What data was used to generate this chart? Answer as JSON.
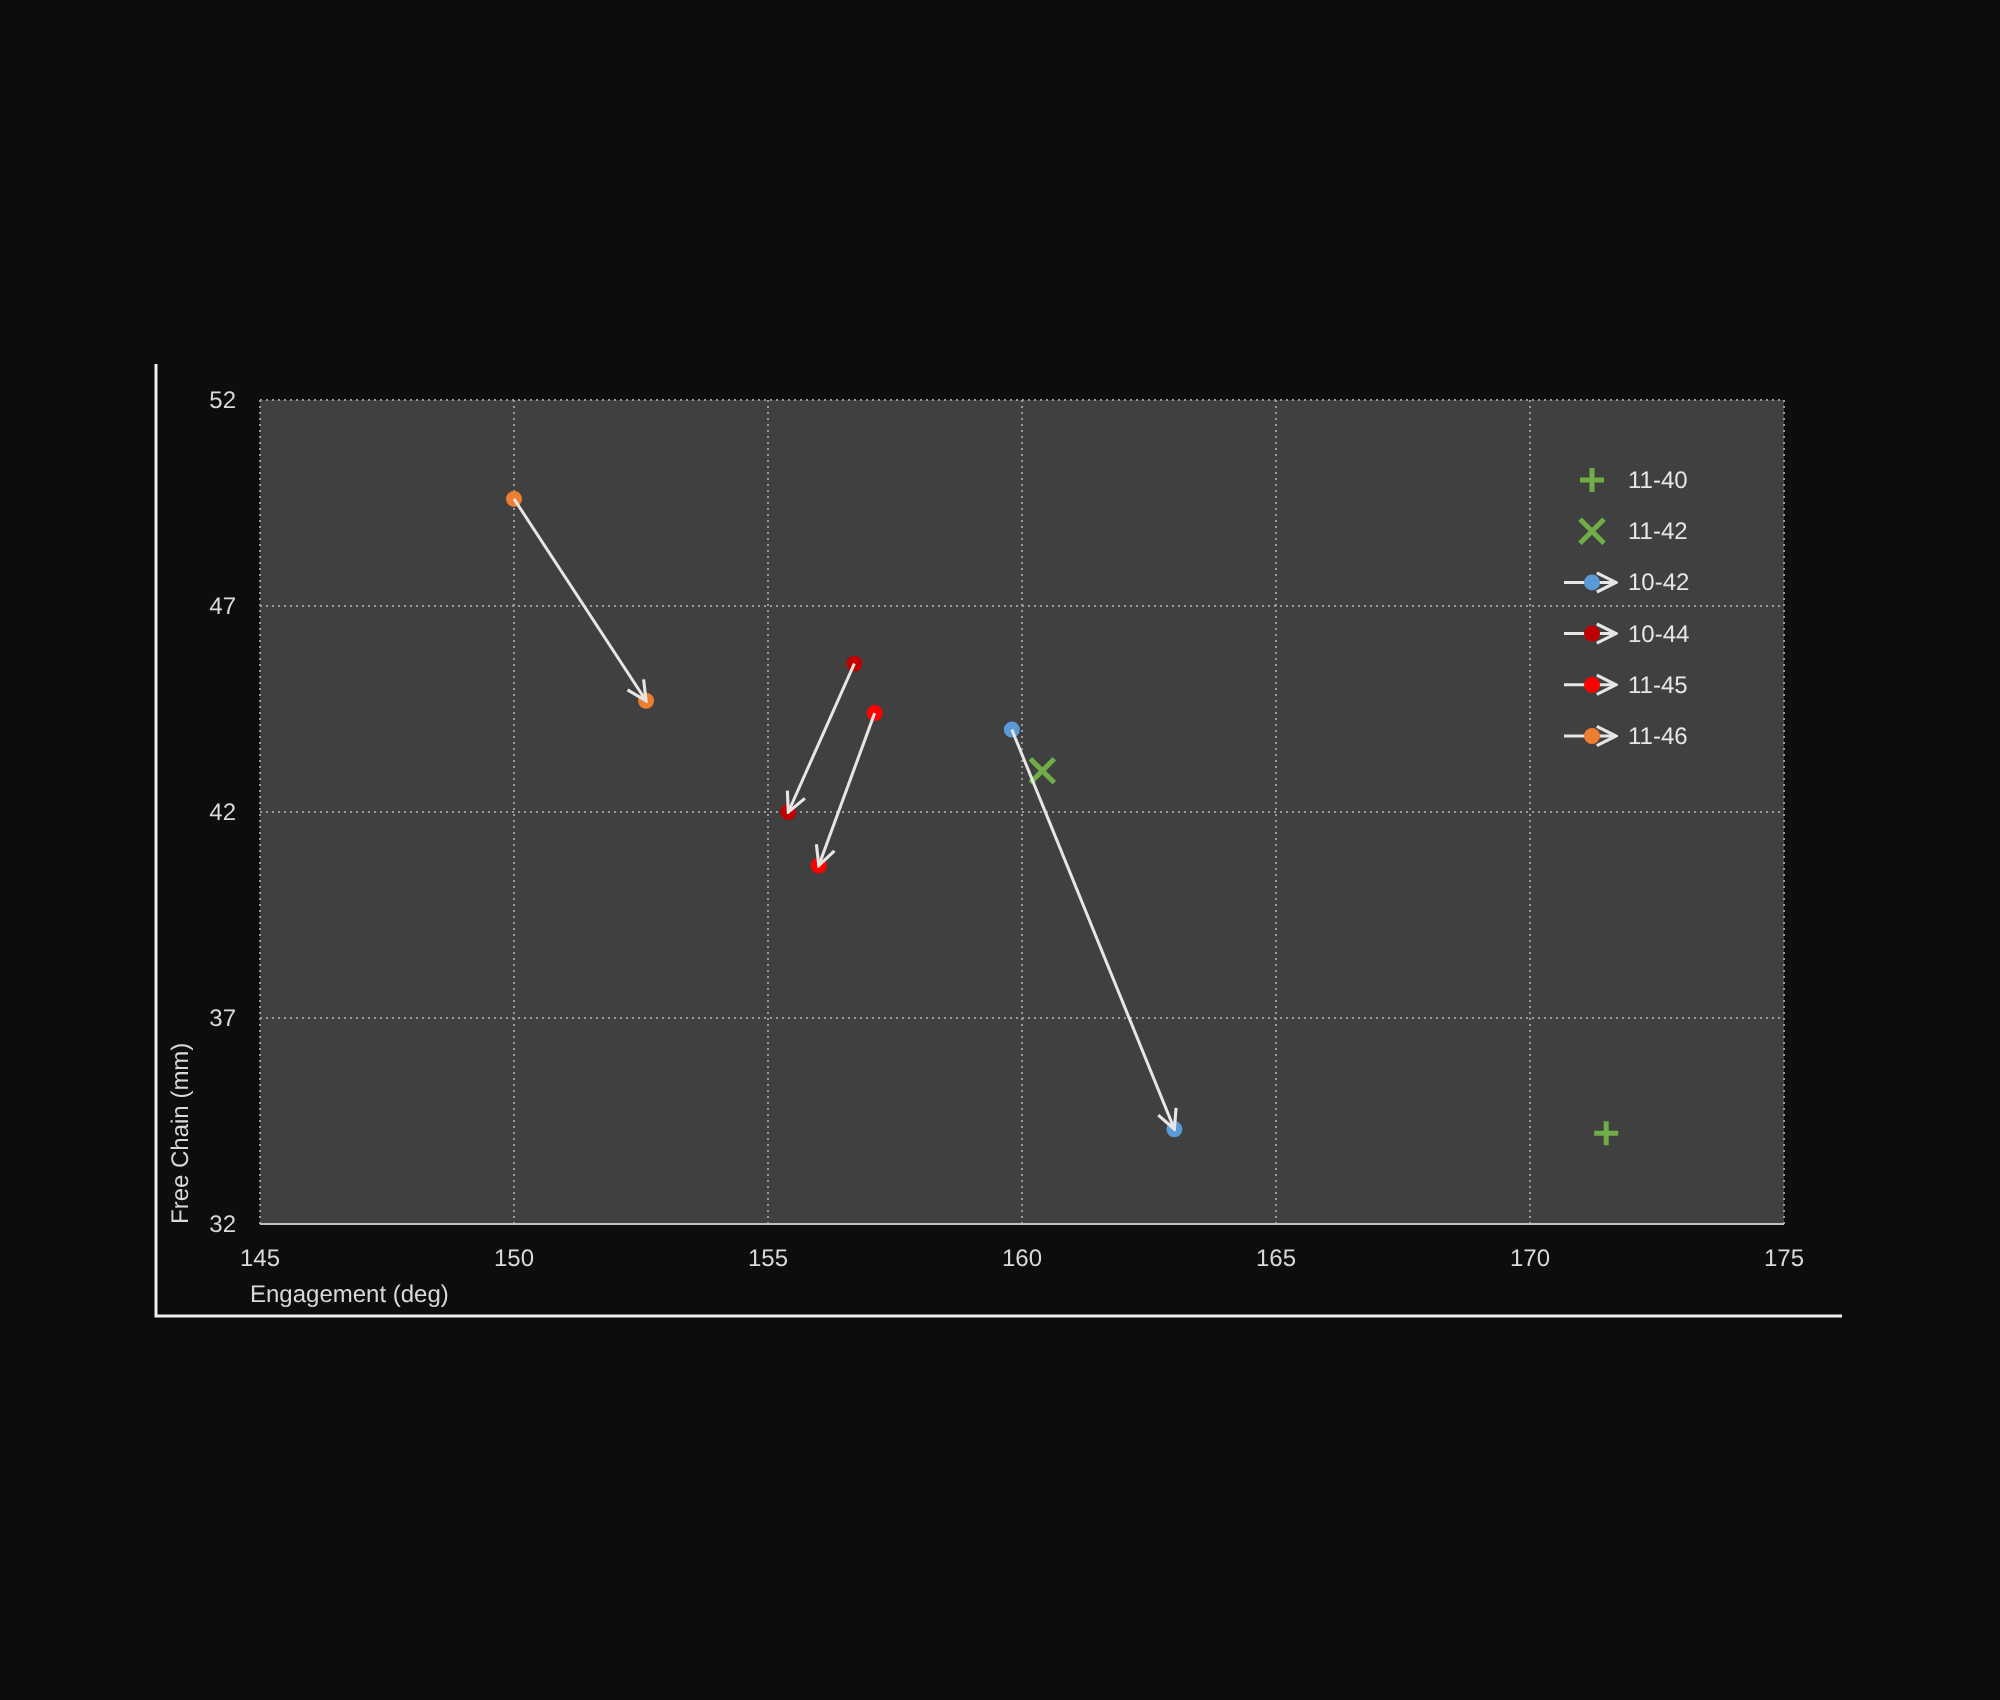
{
  "chart_data": {
    "type": "scatter",
    "xlabel": "Engagement  (deg)",
    "ylabel": "Free Chain (mm)",
    "xlim": [
      145,
      175
    ],
    "xticks": [
      145,
      150,
      155,
      160,
      165,
      170,
      175
    ],
    "ylim": [
      32,
      52
    ],
    "yticks": [
      32,
      37,
      42,
      47,
      52
    ],
    "grid": true,
    "legend": "top right",
    "series": [
      {
        "name": "11-40",
        "marker": "plus",
        "color": "#70ad47",
        "x": [
          171.5
        ],
        "values": [
          34.2
        ]
      },
      {
        "name": "11-42",
        "marker": "cross",
        "color": "#70ad47",
        "x": [
          160.4
        ],
        "values": [
          43.0
        ]
      },
      {
        "name": "10-42",
        "type": "line",
        "marker": "circle",
        "color": "#5b9bd5",
        "x": [
          159.8,
          163.0
        ],
        "values": [
          44.0,
          34.3
        ]
      },
      {
        "name": "10-44",
        "type": "line",
        "marker": "circle",
        "color": "#c00000",
        "x": [
          156.7,
          155.4
        ],
        "values": [
          45.6,
          42.0
        ]
      },
      {
        "name": "11-45",
        "type": "line",
        "marker": "circle",
        "color": "#ff0000",
        "x": [
          157.1,
          156.0
        ],
        "values": [
          44.4,
          40.7
        ]
      },
      {
        "name": "11-46",
        "type": "line",
        "marker": "circle",
        "color": "#ed7d31",
        "x": [
          150.0,
          152.6
        ],
        "values": [
          49.6,
          44.7
        ]
      }
    ]
  }
}
